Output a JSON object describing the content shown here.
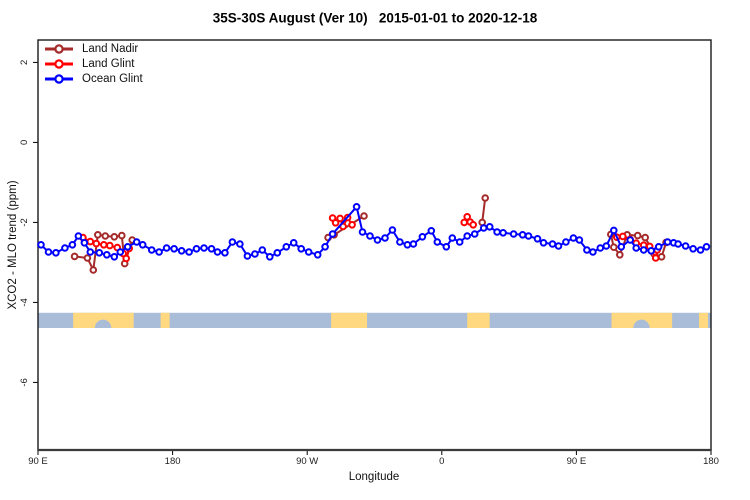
{
  "chart_data": {
    "type": "line",
    "title": "35S-30S August (Ver 10)   2015-01-01 to 2020-12-18",
    "xlabel": "Longitude",
    "ylabel": "XCO2 - MLO trend (ppm)",
    "grid": false,
    "legend_position": "top-left",
    "x_axis": {
      "range": [
        90,
        540
      ],
      "ticks": [
        90,
        180,
        270,
        360,
        450,
        540
      ],
      "tick_labels": [
        "90 E",
        "180",
        "90 W",
        "0",
        "90 E",
        "180"
      ],
      "note": "longitude axis runs eastward from 90E across the dateline through 90W and 0 back to 180"
    },
    "y_axis": {
      "range": [
        -7.69,
        2.56
      ],
      "ticks": [
        2,
        0,
        -2,
        -4,
        -6
      ],
      "tick_labels": [
        "2",
        "0",
        "-2",
        "-4",
        "-6"
      ]
    },
    "series": [
      {
        "name": "Land Nadir",
        "color": "#A52A2A",
        "segments": [
          [
            [
              114.5,
              -2.85
            ],
            [
              123,
              -2.89
            ],
            [
              127,
              -3.19
            ],
            [
              130,
              -2.31
            ],
            [
              135,
              -2.34
            ],
            [
              141,
              -2.36
            ],
            [
              146,
              -2.33
            ],
            [
              148,
              -3.03
            ],
            [
              153,
              -2.44
            ]
          ],
          [
            [
              284,
              -2.38
            ],
            [
              288,
              -2.31
            ],
            [
              308,
              -1.84
            ]
          ],
          [
            [
              387,
              -2.0
            ],
            [
              389,
              -1.39
            ]
          ],
          [
            [
              473,
              -2.3
            ],
            [
              475,
              -2.62
            ],
            [
              479,
              -2.81
            ],
            [
              484,
              -2.31
            ],
            [
              491,
              -2.33
            ],
            [
              496,
              -2.38
            ],
            [
              502,
              -2.79
            ],
            [
              507,
              -2.86
            ],
            [
              510,
              -2.5
            ]
          ]
        ]
      },
      {
        "name": "Land Glint",
        "color": "#FF0000",
        "segments": [
          [
            [
              120,
              -2.38
            ],
            [
              125,
              -2.48
            ],
            [
              129,
              -2.53
            ],
            [
              134,
              -2.56
            ],
            [
              138,
              -2.58
            ],
            [
              143,
              -2.63
            ],
            [
              147,
              -2.78
            ],
            [
              149,
              -2.9
            ],
            [
              151,
              -2.65
            ]
          ],
          [
            [
              287,
              -1.89
            ],
            [
              289,
              -2.01
            ],
            [
              292,
              -1.9
            ],
            [
              294,
              -2.1
            ],
            [
              297,
              -1.88
            ],
            [
              300,
              -2.06
            ]
          ],
          [
            [
              375,
              -2.0
            ],
            [
              377,
              -1.86
            ],
            [
              379,
              -1.99
            ],
            [
              381,
              -2.06
            ]
          ],
          [
            [
              477,
              -2.37
            ],
            [
              481,
              -2.35
            ],
            [
              486,
              -2.43
            ],
            [
              490,
              -2.52
            ],
            [
              495,
              -2.57
            ],
            [
              499,
              -2.6
            ],
            [
              503,
              -2.89
            ],
            [
              504,
              -2.69
            ]
          ]
        ]
      },
      {
        "name": "Ocean Glint",
        "color": "#0000FF",
        "segments": [
          [
            [
              92,
              -2.56
            ],
            [
              97,
              -2.74
            ],
            [
              102,
              -2.76
            ],
            [
              108,
              -2.64
            ],
            [
              113,
              -2.56
            ],
            [
              117,
              -2.34
            ],
            [
              121,
              -2.51
            ],
            [
              125,
              -2.74
            ],
            [
              131,
              -2.76
            ],
            [
              136,
              -2.81
            ],
            [
              141,
              -2.86
            ],
            [
              145,
              -2.74
            ],
            [
              150,
              -2.61
            ],
            [
              156,
              -2.49
            ],
            [
              160,
              -2.56
            ],
            [
              166,
              -2.69
            ],
            [
              171,
              -2.74
            ],
            [
              176,
              -2.64
            ],
            [
              181,
              -2.66
            ],
            [
              186,
              -2.71
            ],
            [
              191,
              -2.74
            ],
            [
              196,
              -2.66
            ],
            [
              201,
              -2.64
            ],
            [
              206,
              -2.66
            ],
            [
              210,
              -2.74
            ],
            [
              215,
              -2.76
            ],
            [
              220,
              -2.49
            ],
            [
              225,
              -2.54
            ],
            [
              230,
              -2.84
            ],
            [
              235,
              -2.79
            ],
            [
              240,
              -2.69
            ],
            [
              245,
              -2.86
            ],
            [
              250,
              -2.76
            ],
            [
              256,
              -2.61
            ],
            [
              261,
              -2.51
            ],
            [
              266,
              -2.66
            ],
            [
              271,
              -2.74
            ],
            [
              277,
              -2.81
            ],
            [
              282,
              -2.61
            ],
            [
              287,
              -2.29
            ],
            [
              303,
              -1.61
            ],
            [
              307,
              -2.24
            ],
            [
              312,
              -2.34
            ],
            [
              317,
              -2.44
            ],
            [
              322,
              -2.39
            ],
            [
              327,
              -2.19
            ],
            [
              332,
              -2.49
            ],
            [
              337,
              -2.56
            ],
            [
              341,
              -2.54
            ],
            [
              347,
              -2.36
            ],
            [
              353,
              -2.21
            ],
            [
              357,
              -2.49
            ],
            [
              363,
              -2.61
            ],
            [
              367,
              -2.39
            ],
            [
              372,
              -2.49
            ],
            [
              377,
              -2.34
            ],
            [
              382,
              -2.29
            ],
            [
              388,
              -2.14
            ],
            [
              392,
              -2.11
            ],
            [
              397,
              -2.24
            ],
            [
              401,
              -2.26
            ],
            [
              408,
              -2.29
            ],
            [
              414,
              -2.31
            ],
            [
              418,
              -2.34
            ],
            [
              424,
              -2.41
            ],
            [
              428,
              -2.51
            ],
            [
              434,
              -2.54
            ],
            [
              438,
              -2.59
            ],
            [
              443,
              -2.49
            ],
            [
              448,
              -2.39
            ],
            [
              452,
              -2.44
            ],
            [
              457,
              -2.69
            ],
            [
              461,
              -2.74
            ],
            [
              466,
              -2.64
            ],
            [
              470,
              -2.59
            ],
            [
              475,
              -2.2
            ],
            [
              480,
              -2.61
            ],
            [
              486,
              -2.44
            ],
            [
              490,
              -2.64
            ],
            [
              495,
              -2.69
            ],
            [
              500,
              -2.71
            ],
            [
              505,
              -2.61
            ],
            [
              511,
              -2.49
            ],
            [
              515,
              -2.51
            ],
            [
              518,
              -2.54
            ],
            [
              523,
              -2.59
            ],
            [
              528,
              -2.66
            ],
            [
              533,
              -2.69
            ],
            [
              537,
              -2.61
            ]
          ]
        ]
      }
    ],
    "surface_strip": {
      "description": "land/ocean map strip for latitude band 35S-30S",
      "y_top": -4.26,
      "y_bottom": -4.64,
      "ocean_color": "#A9BDD9",
      "land_color": "#FFD880",
      "land_ranges": [
        [
          113.5,
          154
        ],
        [
          172,
          178
        ],
        [
          286,
          310
        ],
        [
          377,
          392
        ],
        [
          473.5,
          514
        ],
        [
          532,
          538
        ]
      ],
      "coast_notches": [
        [
          128,
          139
        ],
        [
          488,
          499
        ]
      ]
    }
  }
}
